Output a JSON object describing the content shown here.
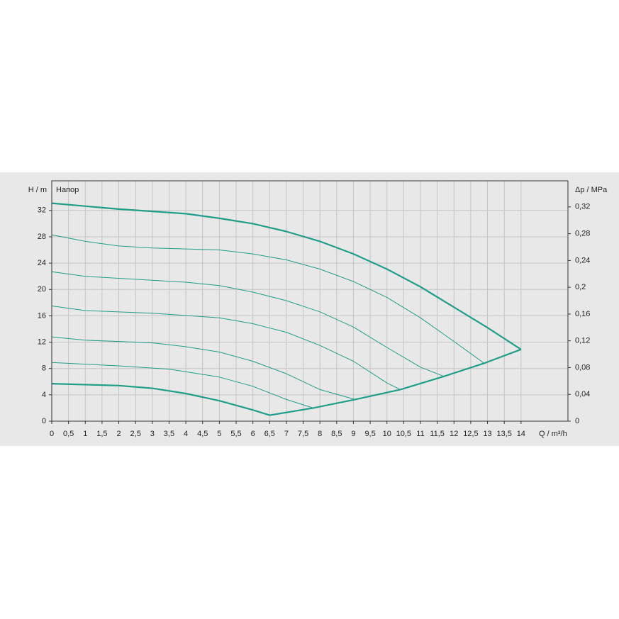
{
  "chart_data": {
    "type": "line",
    "title": "Напор",
    "y_label": "H / m",
    "y2_label": "Δp / MPa",
    "x_label": "Q / m³/h",
    "xlim": [
      0,
      15.4
    ],
    "xticks": [
      0,
      {
        "value": 0.5,
        "label": "0,5"
      },
      1,
      {
        "value": 1.5,
        "label": "1,5"
      },
      2,
      {
        "value": 2.5,
        "label": "2,5"
      },
      3,
      {
        "value": 3.5,
        "label": "3,5"
      },
      4,
      {
        "value": 4.5,
        "label": "4,5"
      },
      5,
      {
        "value": 5.5,
        "label": "5,5"
      },
      6,
      {
        "value": 6.5,
        "label": "6,5"
      },
      7,
      {
        "value": 7.5,
        "label": "7,5"
      },
      8,
      {
        "value": 8.5,
        "label": "8,5"
      },
      9,
      {
        "value": 9.5,
        "label": "9,5"
      },
      10,
      {
        "value": 10.5,
        "label": "10,5"
      },
      11,
      {
        "value": 11.5,
        "label": "11,5"
      },
      12,
      {
        "value": 12.5,
        "label": "12,5"
      },
      13,
      {
        "value": 13.5,
        "label": "13,5"
      },
      14
    ],
    "ylim": [
      0,
      36.5
    ],
    "yticks": [
      0,
      4,
      8,
      12,
      16,
      20,
      24,
      28,
      32
    ],
    "y2lim": [
      0,
      0.359
    ],
    "y2ticks": [
      0,
      {
        "value": 0.04,
        "label": "0,04"
      },
      {
        "value": 0.08,
        "label": "0,08"
      },
      {
        "value": 0.12,
        "label": "0,12"
      },
      {
        "value": 0.16,
        "label": "0,16"
      },
      {
        "value": 0.2,
        "label": "0,2"
      },
      {
        "value": 0.24,
        "label": "0,24"
      },
      {
        "value": 0.28,
        "label": "0,28"
      },
      {
        "value": 0.32,
        "label": "0,32"
      }
    ],
    "grid": true,
    "series": [
      {
        "color": "#1f9e89",
        "line_width": 2.2,
        "x": [
          0,
          2,
          4,
          5,
          6,
          7,
          8,
          9,
          10,
          11,
          12,
          13,
          14
        ],
        "values": [
          33.1,
          32.2,
          31.5,
          30.8,
          30.0,
          28.8,
          27.3,
          25.4,
          23.1,
          20.4,
          17.3,
          14.2,
          10.9
        ]
      },
      {
        "color": "#1f9e89",
        "line_width": 1,
        "x": [
          0,
          1,
          2,
          3,
          5,
          6,
          7,
          8,
          9,
          10,
          11,
          12,
          12.9
        ],
        "values": [
          28.3,
          27.3,
          26.6,
          26.3,
          26.0,
          25.4,
          24.5,
          23.1,
          21.2,
          18.8,
          15.7,
          12.1,
          8.8
        ]
      },
      {
        "color": "#1f9e89",
        "line_width": 1,
        "x": [
          0,
          1,
          2,
          4,
          5,
          6,
          7,
          8,
          9,
          10,
          11,
          11.7
        ],
        "values": [
          22.7,
          22.0,
          21.7,
          21.1,
          20.6,
          19.6,
          18.3,
          16.6,
          14.3,
          11.2,
          8.2,
          6.8
        ]
      },
      {
        "color": "#1f9e89",
        "line_width": 1,
        "x": [
          0,
          1,
          3,
          5,
          6,
          7,
          8,
          9,
          10,
          10.4
        ],
        "values": [
          17.5,
          16.8,
          16.4,
          15.7,
          14.8,
          13.5,
          11.5,
          9.1,
          5.8,
          4.8
        ]
      },
      {
        "color": "#1f9e89",
        "line_width": 1,
        "x": [
          0,
          1,
          3,
          4,
          5,
          6,
          7,
          8,
          9.05
        ],
        "values": [
          12.8,
          12.3,
          11.9,
          11.3,
          10.5,
          9.1,
          7.2,
          4.8,
          3.3
        ]
      },
      {
        "color": "#1f9e89",
        "line_width": 1,
        "x": [
          0,
          2,
          3.5,
          5,
          6,
          7,
          7.8
        ],
        "values": [
          8.9,
          8.4,
          7.9,
          6.7,
          5.3,
          3.3,
          2.0
        ]
      },
      {
        "color": "#1f9e89",
        "line_width": 2.2,
        "x": [
          0,
          2,
          3,
          4,
          5,
          6,
          6.5
        ],
        "values": [
          5.7,
          5.4,
          5.0,
          4.2,
          3.1,
          1.7,
          0.9
        ]
      },
      {
        "color": "#1f9e89",
        "line_width": 2.2,
        "x": [
          6.5,
          7.8,
          9.05,
          10.4,
          11.7,
          12.9,
          14
        ],
        "values": [
          0.9,
          2.0,
          3.3,
          4.8,
          6.8,
          8.8,
          10.9
        ]
      }
    ]
  }
}
